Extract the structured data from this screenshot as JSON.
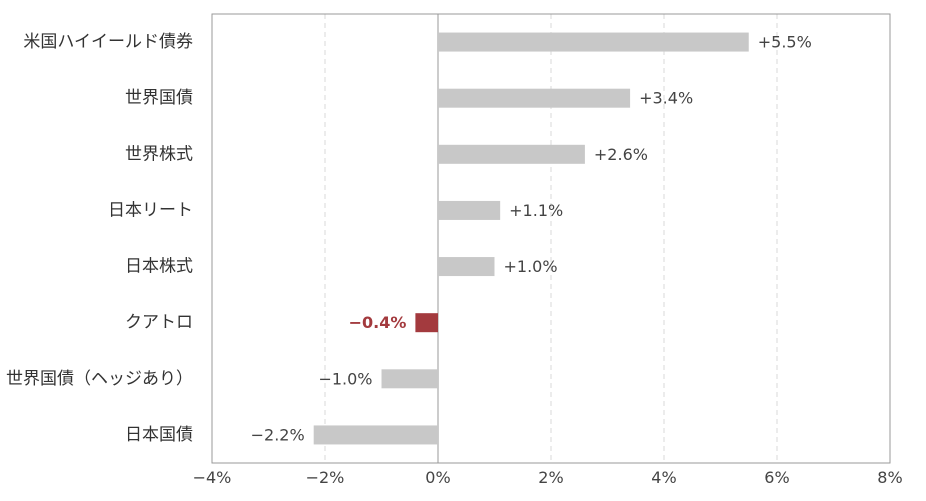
{
  "chart_data": {
    "type": "bar",
    "orientation": "horizontal",
    "categories": [
      "米国ハイイールド債券",
      "世界国債",
      "世界株式",
      "日本リート",
      "日本株式",
      "クアトロ",
      "世界国債（ヘッジあり）",
      "日本国債"
    ],
    "values": [
      5.5,
      3.4,
      2.6,
      1.1,
      1.0,
      -0.4,
      -1.0,
      -2.2
    ],
    "data_labels": [
      "+5.5%",
      "+3.4%",
      "+2.6%",
      "+1.1%",
      "+1.0%",
      "−0.4%",
      "−1.0%",
      "−2.2%"
    ],
    "highlight_index": 5,
    "xlim": [
      -4,
      8
    ],
    "xticks": [
      -4,
      -2,
      0,
      2,
      4,
      6,
      8
    ],
    "xtick_labels": [
      "−4%",
      "−2%",
      "0%",
      "2%",
      "4%",
      "6%",
      "8%"
    ],
    "grid": "vertical-dashed",
    "title": "",
    "xlabel": "",
    "ylabel": ""
  },
  "colors": {
    "bar": "#c8c8c8",
    "highlight_bar": "#a33a3e",
    "highlight_label": "#a33a3e",
    "grid": "#d9d9d9",
    "axis": "#999999"
  }
}
